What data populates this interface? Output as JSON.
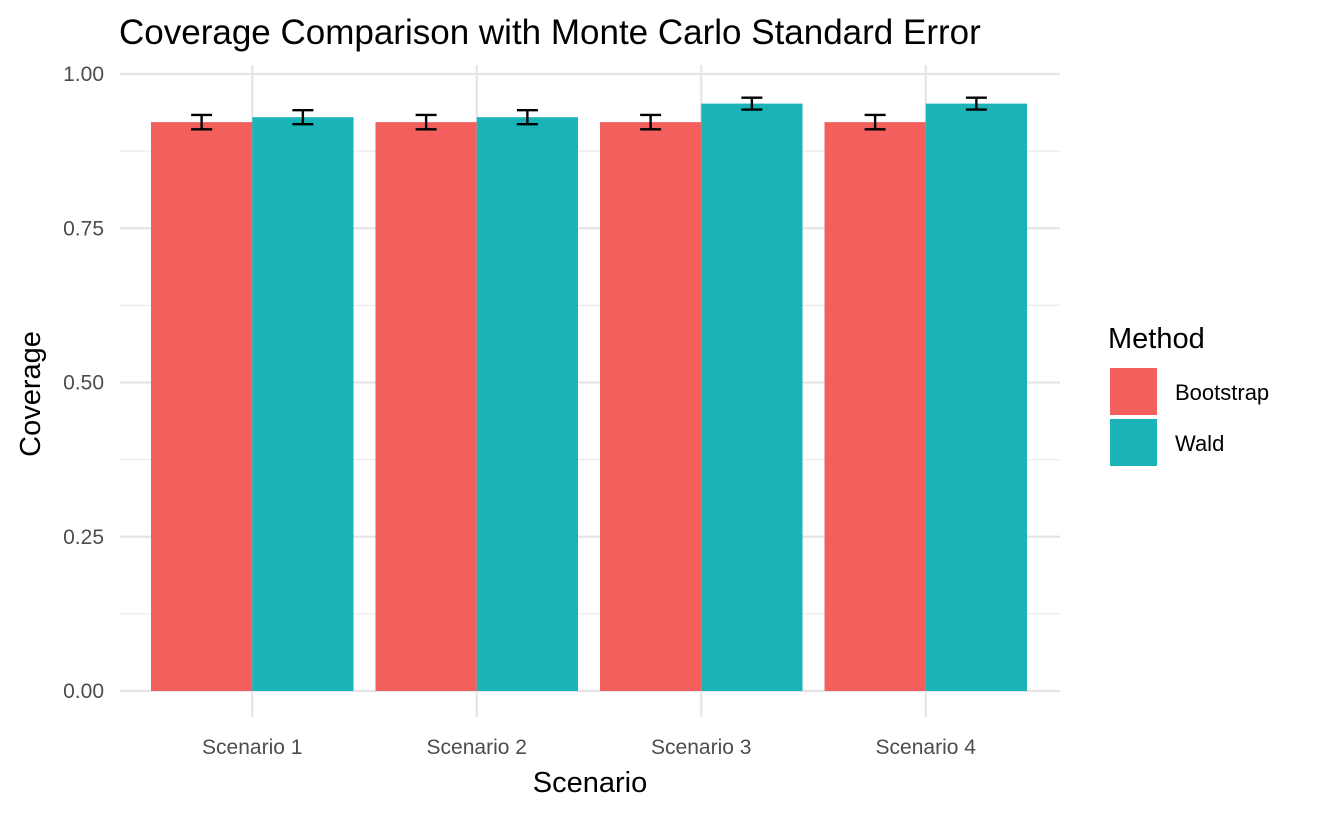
{
  "chart_data": {
    "type": "bar",
    "title": "Coverage Comparison with Monte Carlo Standard Error",
    "xlabel": "Scenario",
    "ylabel": "Coverage",
    "categories": [
      "Scenario 1",
      "Scenario 2",
      "Scenario 3",
      "Scenario 4"
    ],
    "series": [
      {
        "name": "Bootstrap",
        "color": "#F25F5C",
        "values": [
          0.922,
          0.922,
          0.922,
          0.922
        ],
        "error": [
          0.0117,
          0.0117,
          0.0117,
          0.0117
        ]
      },
      {
        "name": "Wald",
        "color": "#1AB3B7",
        "values": [
          0.93,
          0.93,
          0.952,
          0.952
        ],
        "error": [
          0.0114,
          0.0114,
          0.0096,
          0.0096
        ]
      }
    ],
    "ylim": [
      0,
      1.0
    ],
    "yticks": [
      0.0,
      0.25,
      0.5,
      0.75,
      1.0
    ],
    "ytick_labels": [
      "0.00",
      "0.25",
      "0.50",
      "0.75",
      "1.00"
    ],
    "grid": true,
    "legend": {
      "title": "Method",
      "position": "right"
    }
  }
}
